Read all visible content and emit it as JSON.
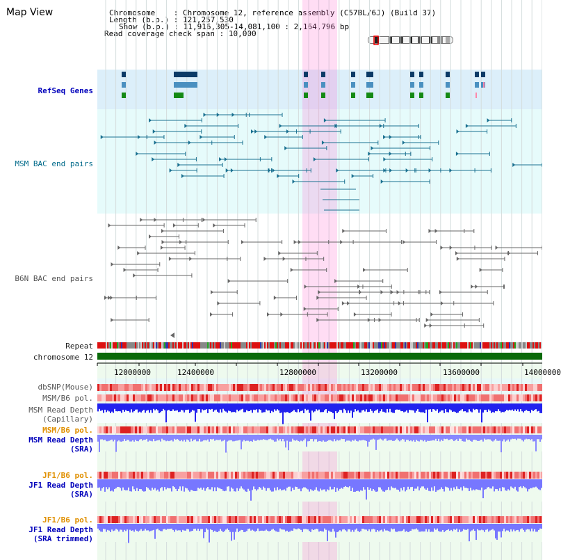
{
  "title": "Map View",
  "header": {
    "lines": [
      {
        "key": "Chromosome",
        "sep": ": ",
        "value": "Chromosome 12, reference assembly (C57BL/6J) (Build 37)"
      },
      {
        "key": "Length (b.p.)",
        "sep": ": ",
        "value": "121,257,530"
      },
      {
        "key": "Show (b.p.)",
        "sep": ": ",
        "value": "11,916,305-14,081,100 : 2,164,796 bp"
      },
      {
        "key": "Read coverage check span",
        "sep": ": ",
        "value": "10,000"
      }
    ]
  },
  "tracks": {
    "refseq": "RefSeq Genes",
    "msm_bac": "MSM BAC end pairs",
    "b6n_bac": "B6N BAC end pairs",
    "repeat": "Repeat",
    "chromosome": "chromosome 12",
    "dbsnp": "dbSNP(Mouse)",
    "msm_b6_pol_1": "MSM/B6 pol.",
    "msm_depth_cap_1": "MSM Read Depth",
    "msm_depth_cap_2": "(Capillary)",
    "msm_b6_pol_2": "MSM/B6 pol.",
    "msm_depth_sra_1": "MSM Read Depth",
    "msm_depth_sra_2": "(SRA)",
    "jf1_b6_pol_1": "JF1/B6 pol.",
    "jf1_depth_sra_1": "JF1 Read Depth",
    "jf1_depth_sra_2": "(SRA)",
    "jf1_b6_pol_2": "JF1/B6 pol.",
    "jf1_depth_trim_1": "JF1 Read Depth",
    "jf1_depth_trim_2": "(SRA trimmed)"
  },
  "axis": {
    "ticks": [
      "12000000",
      "12400000",
      "12800000",
      "13200000",
      "13600000",
      "14000000"
    ]
  },
  "colors": {
    "highlight": "#ffddf3",
    "refseq_bg": "#dceffa",
    "bac_bg": "#e6fbfb",
    "depth_bg": "#eefaee",
    "chromosome": "#0a6a0a",
    "snp": "#ee5555",
    "depth_capillary": "#2222ee",
    "depth_sra": "#7777ff"
  }
}
